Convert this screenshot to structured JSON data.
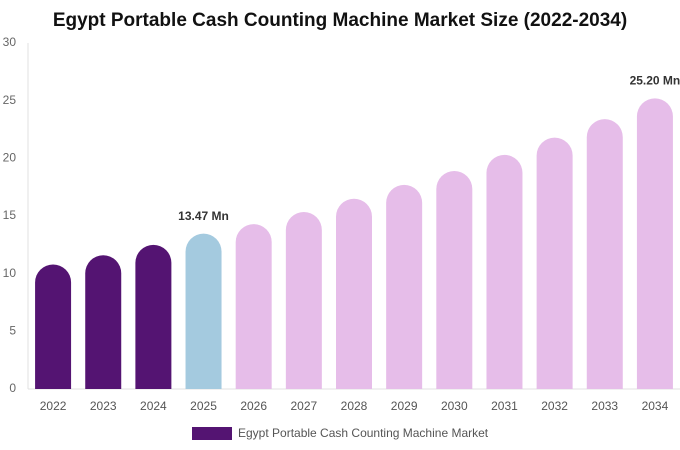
{
  "chart_data": {
    "type": "bar",
    "title": "Egypt Portable Cash Counting Machine Market Size (2022-2034)",
    "categories": [
      "2022",
      "2023",
      "2024",
      "2025",
      "2026",
      "2027",
      "2028",
      "2029",
      "2030",
      "2031",
      "2032",
      "2033",
      "2034"
    ],
    "series": [
      {
        "name": "Egypt Portable Cash Counting Machine Market",
        "color": "#541472",
        "colors": [
          "#541472",
          "#541472",
          "#541472",
          "#a4cadf",
          "#e6bde9",
          "#e6bde9",
          "#e6bde9",
          "#e6bde9",
          "#e6bde9",
          "#e6bde9",
          "#e6bde9",
          "#e6bde9",
          "#e6bde9"
        ],
        "values": [
          10.8,
          11.6,
          12.5,
          13.47,
          14.3,
          15.35,
          16.5,
          17.7,
          18.9,
          20.3,
          21.8,
          23.4,
          25.2
        ],
        "value_labels": [
          null,
          null,
          null,
          "13.47 Mn",
          null,
          null,
          null,
          null,
          null,
          null,
          null,
          null,
          "25.20 Mn"
        ]
      }
    ],
    "ylim": [
      0,
      30
    ],
    "yticks": [
      0,
      5,
      10,
      15,
      20,
      25,
      30
    ],
    "grid": false
  }
}
